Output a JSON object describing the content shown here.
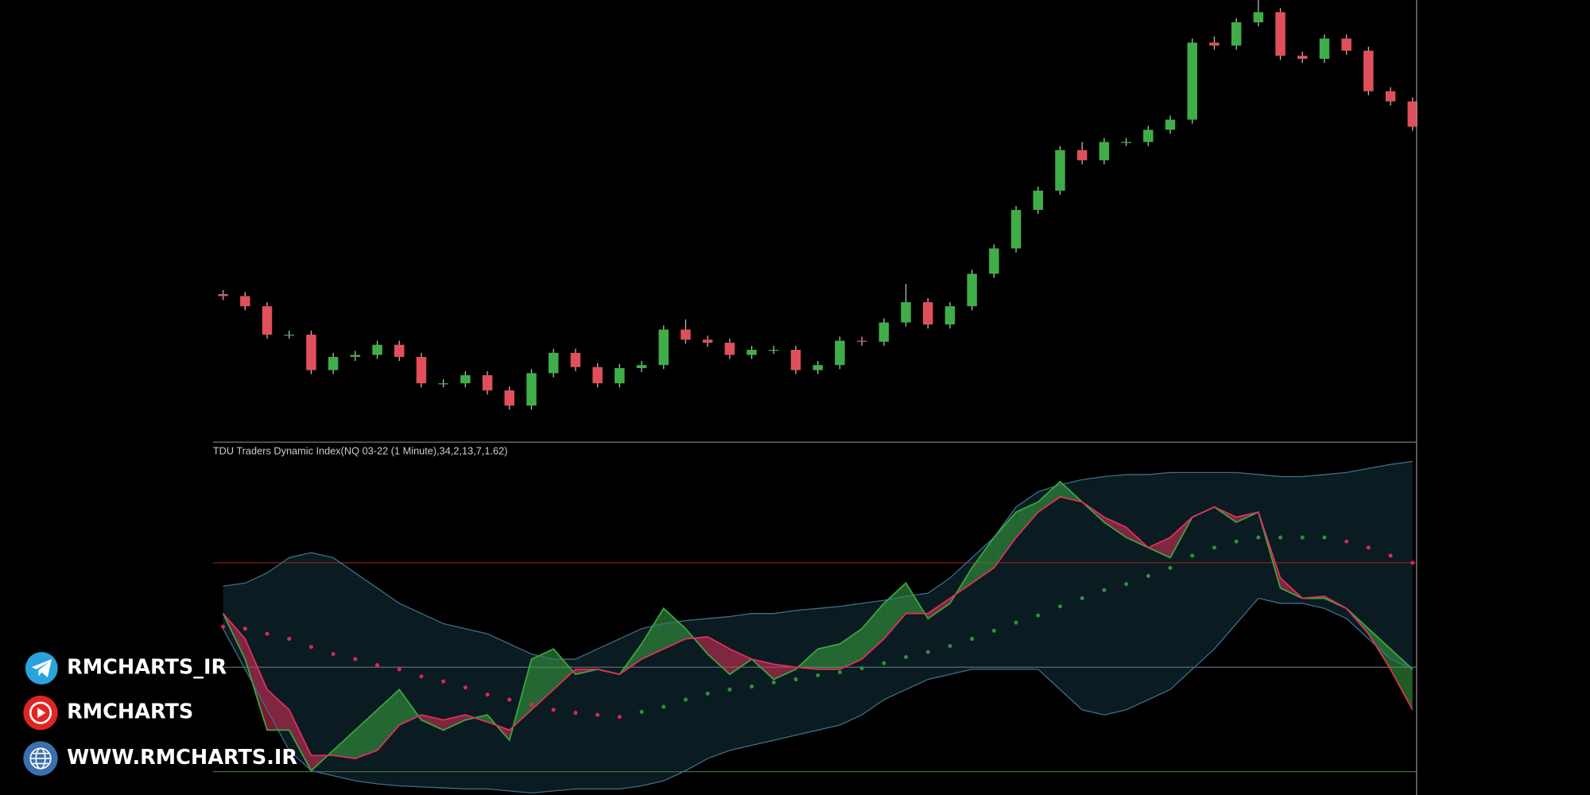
{
  "chart_data": [
    {
      "type": "candlestick",
      "open": [
        150,
        148,
        138,
        110,
        110,
        75,
        88,
        90,
        100,
        88,
        62,
        62,
        70,
        55,
        40,
        72,
        92,
        78,
        62,
        77,
        80,
        115,
        105,
        102,
        90,
        95,
        95,
        75,
        80,
        104,
        103,
        122,
        142,
        120,
        138,
        170,
        195,
        233,
        252,
        292,
        282,
        300,
        300,
        312,
        322,
        398,
        395,
        418,
        428,
        385,
        382,
        402,
        390,
        350,
        340
      ],
      "high": [
        154,
        152,
        142,
        114,
        114,
        92,
        94,
        104,
        104,
        92,
        66,
        74,
        74,
        59,
        76,
        96,
        96,
        82,
        81,
        84,
        119,
        125,
        109,
        106,
        99,
        99,
        99,
        84,
        108,
        108,
        126,
        160,
        146,
        142,
        174,
        199,
        237,
        256,
        296,
        300,
        304,
        304,
        316,
        326,
        402,
        404,
        422,
        440,
        432,
        389,
        406,
        406,
        394,
        354,
        344
      ],
      "low": [
        144,
        134,
        106,
        106,
        71,
        71,
        84,
        86,
        84,
        58,
        58,
        58,
        51,
        36,
        36,
        68,
        74,
        58,
        58,
        73,
        76,
        101,
        98,
        86,
        86,
        91,
        71,
        71,
        76,
        99,
        99,
        118,
        116,
        116,
        134,
        166,
        191,
        229,
        248,
        278,
        278,
        296,
        296,
        308,
        318,
        391,
        391,
        414,
        381,
        378,
        378,
        386,
        346,
        336,
        311
      ],
      "close": [
        148,
        138,
        110,
        110,
        75,
        88,
        90,
        100,
        88,
        62,
        62,
        70,
        55,
        40,
        72,
        92,
        78,
        62,
        77,
        80,
        115,
        105,
        102,
        90,
        95,
        95,
        75,
        80,
        104,
        103,
        122,
        142,
        120,
        138,
        170,
        195,
        233,
        252,
        292,
        282,
        300,
        300,
        312,
        322,
        398,
        395,
        418,
        428,
        385,
        382,
        402,
        390,
        350,
        340,
        315
      ],
      "ylim": [
        4,
        440
      ],
      "up_color": "#3fae49",
      "down_color": "#e0505a"
    },
    {
      "type": "line",
      "title": "TDU Traders Dynamic Index(NQ 03-22 (1 Minute),34,2,13,7,1.62)",
      "ylim": [
        16,
        364
      ],
      "levels": [
        {
          "value": 245,
          "color": "#8b1e1e"
        },
        {
          "value": 142,
          "color": "#5a6a72"
        },
        {
          "value": 39,
          "color": "#3f6b35"
        }
      ],
      "upper_band": {
        "color": "#3f6f8a",
        "values": [
          222,
          225,
          235,
          250,
          255,
          250,
          235,
          220,
          205,
          195,
          185,
          180,
          175,
          165,
          155,
          150,
          150,
          160,
          170,
          180,
          185,
          188,
          190,
          192,
          195,
          195,
          198,
          200,
          202,
          205,
          208,
          212,
          215,
          230,
          250,
          270,
          300,
          315,
          322,
          327,
          330,
          332,
          332,
          334,
          334,
          334,
          334,
          332,
          330,
          330,
          332,
          334,
          338,
          342,
          345
        ]
      },
      "lower_band": {
        "color": "#3f6f8a",
        "values": [
          180,
          140,
          100,
          60,
          40,
          35,
          30,
          27,
          25,
          24,
          23,
          22,
          22,
          20,
          18,
          20,
          22,
          22,
          22,
          25,
          30,
          40,
          52,
          60,
          65,
          70,
          75,
          80,
          85,
          95,
          110,
          120,
          130,
          135,
          140,
          140,
          140,
          140,
          120,
          100,
          95,
          100,
          110,
          120,
          140,
          160,
          185,
          210,
          205,
          205,
          200,
          190,
          170,
          150,
          140
        ]
      },
      "band_fill": "#0a1b22",
      "price_line": {
        "color": "#3aa63f",
        "values": [
          195,
          150,
          80,
          80,
          40,
          60,
          80,
          100,
          120,
          90,
          80,
          90,
          95,
          70,
          150,
          160,
          135,
          140,
          135,
          165,
          200,
          180,
          155,
          135,
          150,
          130,
          140,
          160,
          165,
          180,
          205,
          225,
          190,
          205,
          240,
          270,
          295,
          305,
          325,
          305,
          285,
          270,
          260,
          250,
          290,
          300,
          285,
          295,
          220,
          210,
          210,
          200,
          180,
          160,
          140
        ]
      },
      "signal_line": {
        "color": "#e0305a",
        "values": [
          195,
          170,
          120,
          100,
          55,
          55,
          52,
          60,
          85,
          95,
          90,
          95,
          88,
          80,
          100,
          120,
          140,
          140,
          135,
          150,
          160,
          170,
          172,
          160,
          150,
          145,
          142,
          140,
          140,
          150,
          170,
          195,
          195,
          210,
          225,
          240,
          270,
          295,
          310,
          305,
          290,
          280,
          260,
          270,
          290,
          300,
          290,
          295,
          230,
          210,
          212,
          200,
          175,
          140,
          100
        ]
      },
      "base_line": {
        "up_color": "#2f8f3a",
        "down_color": "#d42a55",
        "values": [
          182,
          180,
          175,
          170,
          162,
          155,
          150,
          144,
          140,
          133,
          128,
          122,
          115,
          110,
          105,
          100,
          97,
          95,
          93,
          98,
          103,
          110,
          116,
          120,
          123,
          127,
          130,
          134,
          137,
          141,
          146,
          152,
          157,
          163,
          170,
          178,
          186,
          193,
          202,
          210,
          218,
          224,
          232,
          240,
          252,
          260,
          266,
          270,
          270,
          270,
          270,
          266,
          260,
          252,
          245
        ]
      }
    }
  ],
  "watermarks": [
    "RMCHARTS_IR",
    "RMCHARTS",
    "WWW.RMCHARTS.IR"
  ]
}
